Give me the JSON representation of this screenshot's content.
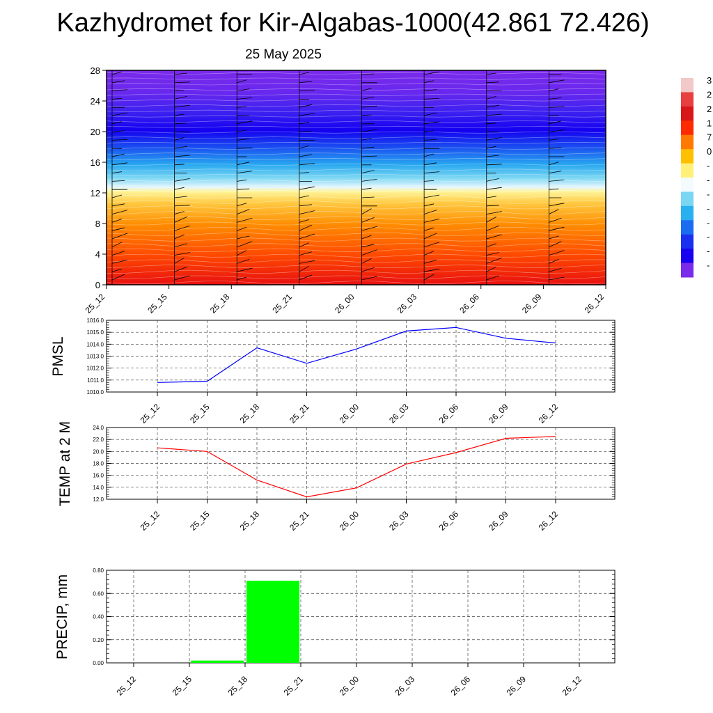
{
  "header": {
    "title": "Kazhydromet for Kir-Algabas-1000(42.861 72.426)",
    "date": "25 May 2025"
  },
  "chart_data": [
    {
      "type": "heatmap",
      "x_ticks": [
        "25_12",
        "25_15",
        "25_18",
        "25_21",
        "26_00",
        "26_03",
        "26_06",
        "26_09",
        "26_12"
      ],
      "y_ticks": [
        "0",
        "4",
        "8",
        "12",
        "16",
        "20",
        "24",
        "28"
      ],
      "ylim": [
        0,
        28
      ],
      "colorbar_labels": [
        "3",
        "2",
        "2",
        "1",
        "7",
        "0",
        "-",
        "-",
        "-",
        "-",
        "-",
        "-",
        "-",
        "-"
      ],
      "colorbar_colors": [
        "#f2c8c8",
        "#e84040",
        "#d81818",
        "#ff2a00",
        "#ff7a00",
        "#ffc000",
        "#fff07a",
        "#f4fbff",
        "#7ad6f2",
        "#28b0f0",
        "#1a6cf0",
        "#1a30f0",
        "#1800f0",
        "#7a2aea"
      ],
      "temperature_bands": [
        {
          "from": 0,
          "to": 4,
          "color": "#f01818"
        },
        {
          "from": 4,
          "to": 8,
          "color": "#ff5a00"
        },
        {
          "from": 8,
          "to": 11,
          "color": "#ffa200"
        },
        {
          "from": 11,
          "to": 12.5,
          "color": "#fff07a"
        },
        {
          "from": 12.5,
          "to": 14,
          "color": "#bfe8f8"
        },
        {
          "from": 14,
          "to": 17,
          "color": "#28b0f0"
        },
        {
          "from": 17,
          "to": 21,
          "color": "#1a20f0"
        },
        {
          "from": 21,
          "to": 24,
          "color": "#2a18f0"
        },
        {
          "from": 24,
          "to": 28,
          "color": "#7a2aea"
        }
      ]
    },
    {
      "type": "line",
      "ylabel": "PMSL",
      "categories": [
        "25_12",
        "25_15",
        "25_18",
        "25_21",
        "26_00",
        "26_03",
        "26_06",
        "26_09",
        "26_12"
      ],
      "values": [
        1010.8,
        1010.9,
        1013.7,
        1012.4,
        1013.6,
        1015.1,
        1015.4,
        1014.5,
        1014.1
      ],
      "ylim": [
        1010.0,
        1016.0
      ],
      "y_ticks": [
        "1010.0",
        "1011.0",
        "1012.0",
        "1013.0",
        "1014.0",
        "1015.0",
        "1016.0"
      ],
      "color": "#0000ff"
    },
    {
      "type": "line",
      "ylabel": "TEMP at 2 M",
      "categories": [
        "25_12",
        "25_15",
        "25_18",
        "25_21",
        "26_00",
        "26_03",
        "26_06",
        "26_09",
        "26_12"
      ],
      "values": [
        20.6,
        20.0,
        15.2,
        12.4,
        13.9,
        17.9,
        19.8,
        22.2,
        22.5
      ],
      "ylim": [
        12.0,
        24.0
      ],
      "y_ticks": [
        "12.0",
        "14.0",
        "16.0",
        "18.0",
        "20.0",
        "22.0",
        "24.0"
      ],
      "color": "#ff0000"
    },
    {
      "type": "bar",
      "ylabel": "PRECIP, mm",
      "categories": [
        "25_12",
        "25_15",
        "25_18",
        "25_21",
        "26_00",
        "26_03",
        "26_06",
        "26_09",
        "26_12"
      ],
      "values": [
        0,
        0.02,
        0.71,
        0,
        0,
        0,
        0,
        0,
        0
      ],
      "ylim": [
        0,
        0.8
      ],
      "y_ticks": [
        "0.00",
        "0.20",
        "0.40",
        "0.60",
        "0.80"
      ],
      "color": "#00ff00"
    }
  ]
}
